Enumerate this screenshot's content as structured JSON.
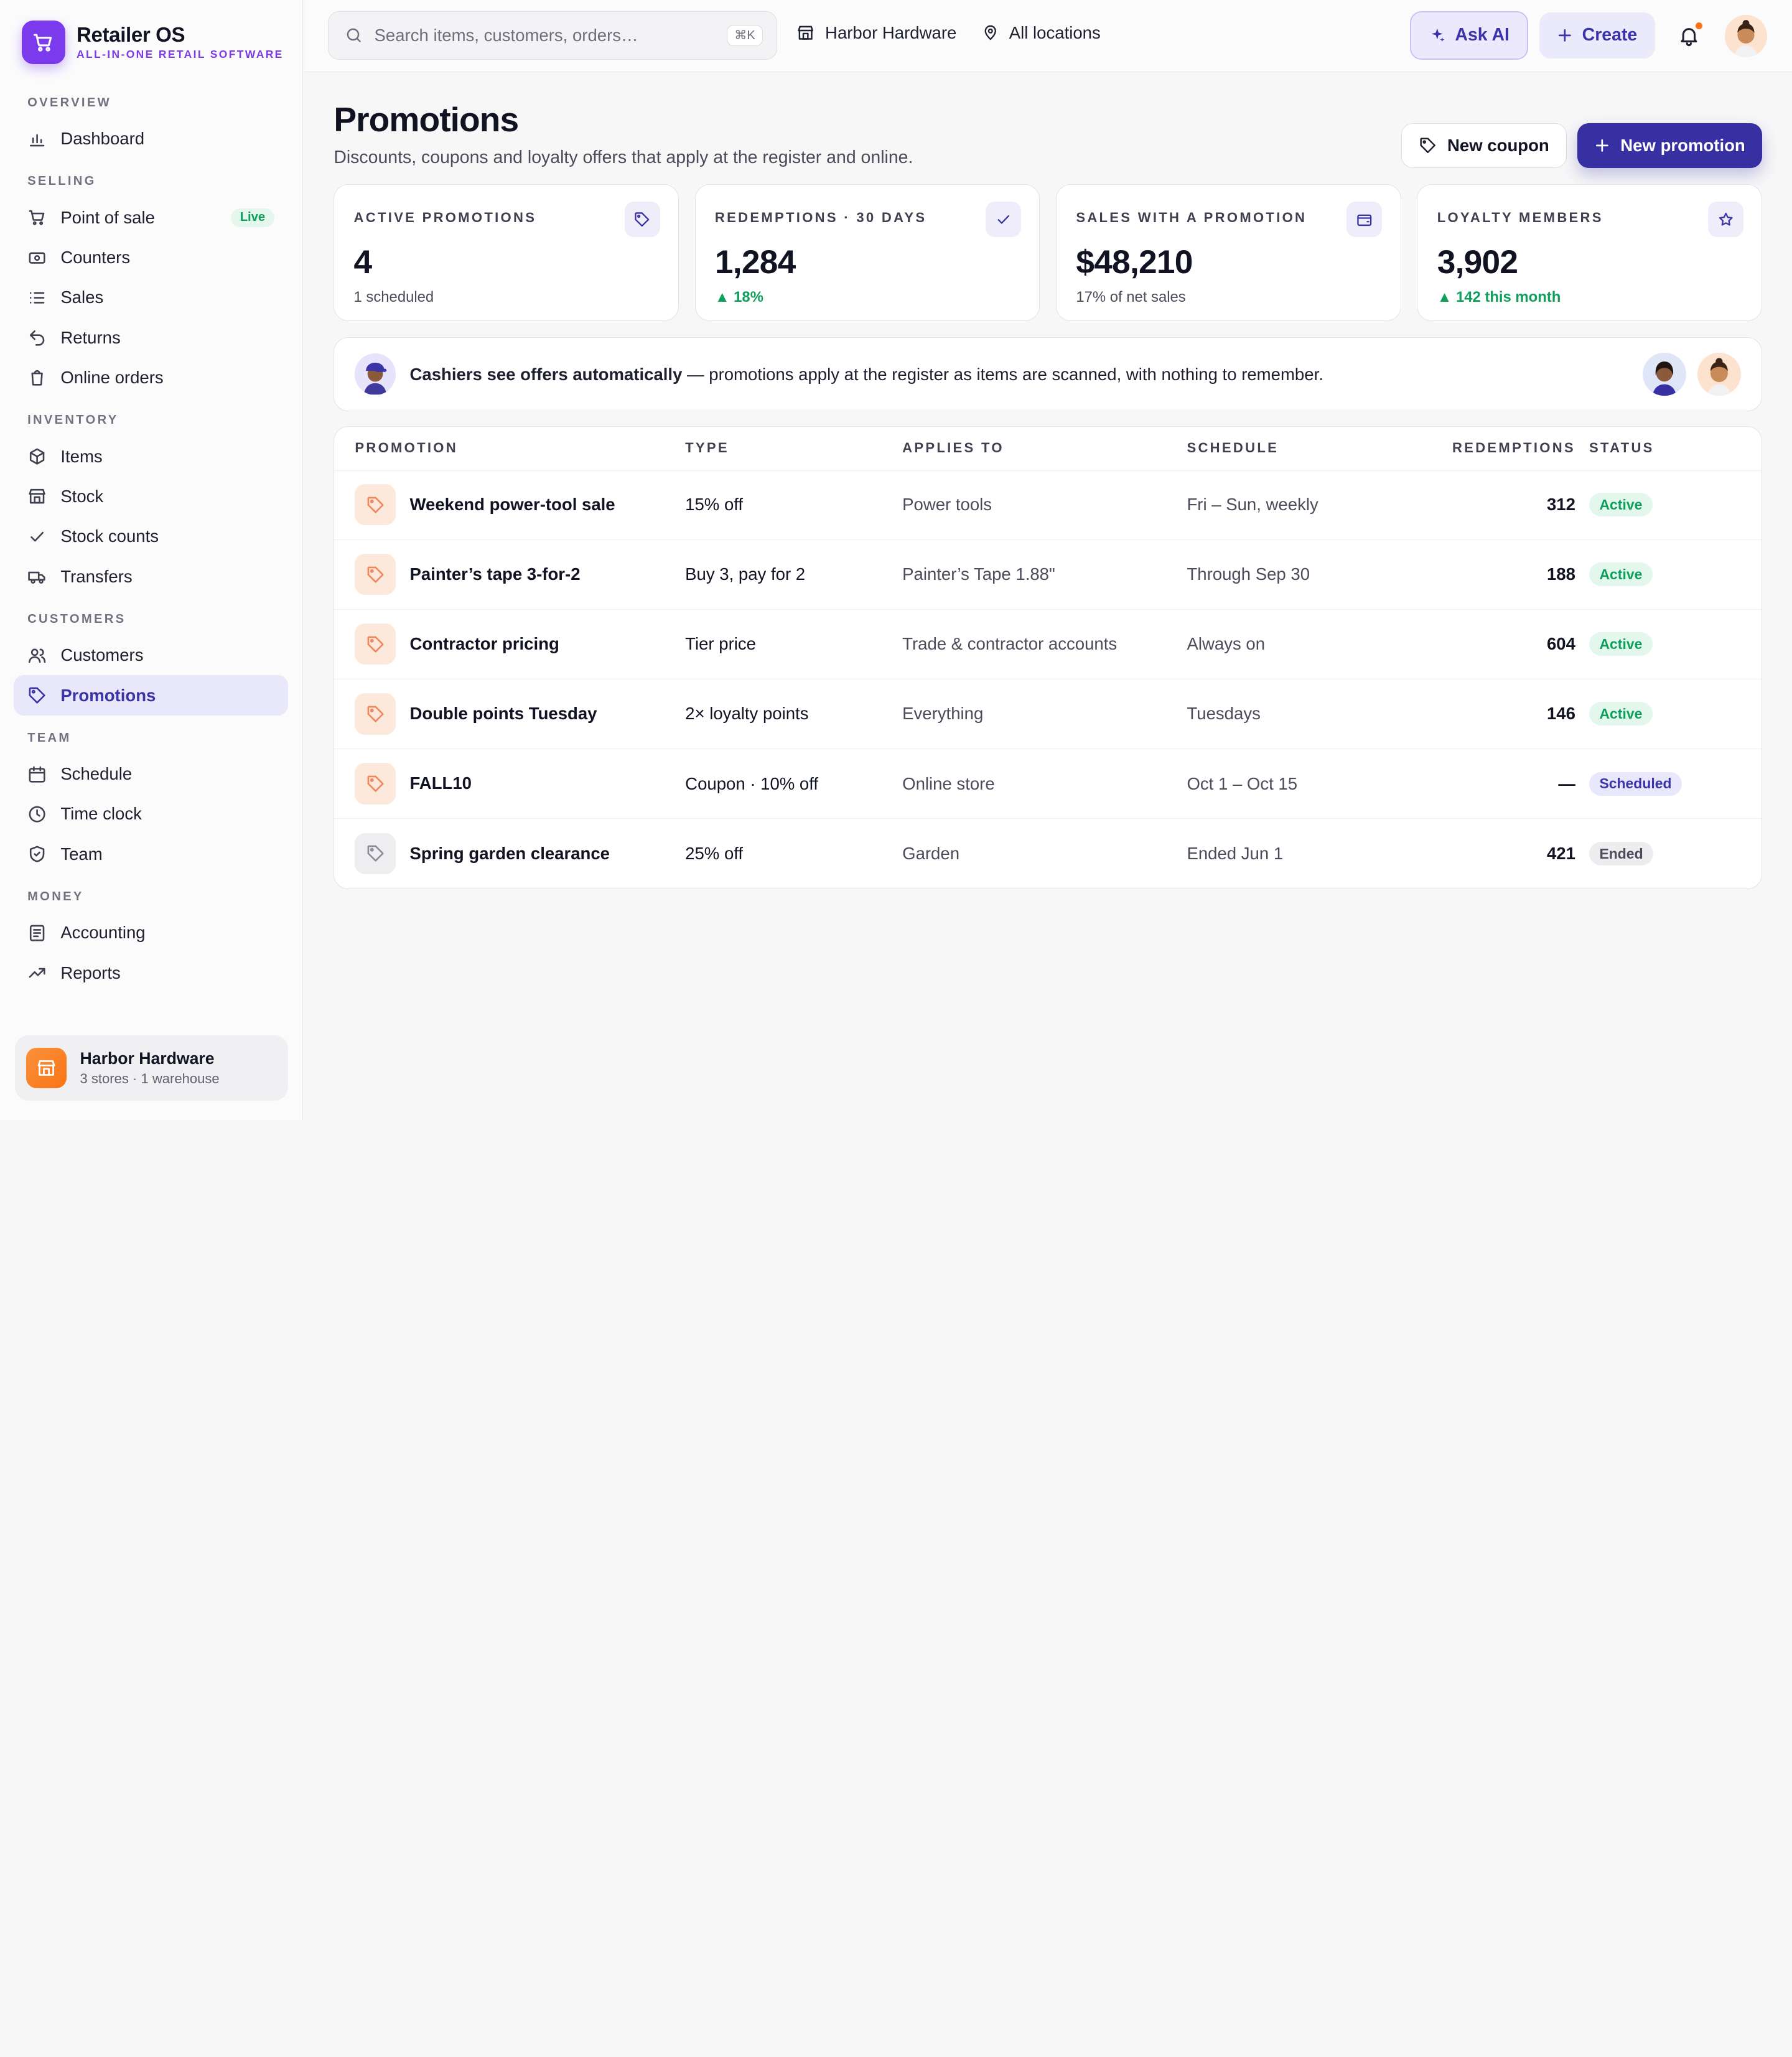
{
  "brand": {
    "name": "Retailer OS",
    "tagline": "ALL-IN-ONE RETAIL SOFTWARE"
  },
  "sidebar": {
    "sections": [
      {
        "title": "OVERVIEW",
        "items": [
          {
            "label": "Dashboard",
            "icon": "bar-chart-icon"
          }
        ]
      },
      {
        "title": "SELLING",
        "items": [
          {
            "label": "Point of sale",
            "icon": "cart-icon",
            "badge": "Live"
          },
          {
            "label": "Counters",
            "icon": "register-icon"
          },
          {
            "label": "Sales",
            "icon": "list-icon"
          },
          {
            "label": "Returns",
            "icon": "return-arrow-icon"
          },
          {
            "label": "Online orders",
            "icon": "bag-icon"
          }
        ]
      },
      {
        "title": "INVENTORY",
        "items": [
          {
            "label": "Items",
            "icon": "box-icon"
          },
          {
            "label": "Stock",
            "icon": "warehouse-icon"
          },
          {
            "label": "Stock counts",
            "icon": "check-icon"
          },
          {
            "label": "Transfers",
            "icon": "truck-icon"
          }
        ]
      },
      {
        "title": "CUSTOMERS",
        "items": [
          {
            "label": "Customers",
            "icon": "users-icon"
          },
          {
            "label": "Promotions",
            "icon": "tag-icon",
            "active": true
          }
        ]
      },
      {
        "title": "TEAM",
        "items": [
          {
            "label": "Schedule",
            "icon": "calendar-icon"
          },
          {
            "label": "Time clock",
            "icon": "clock-icon"
          },
          {
            "label": "Team",
            "icon": "shield-icon"
          }
        ]
      },
      {
        "title": "MONEY",
        "items": [
          {
            "label": "Accounting",
            "icon": "ledger-icon"
          },
          {
            "label": "Reports",
            "icon": "trend-icon"
          }
        ]
      }
    ],
    "store": {
      "name": "Harbor Hardware",
      "sub": "3 stores · 1 warehouse"
    }
  },
  "topbar": {
    "search_placeholder": "Search items, customers, orders…",
    "shortcut": "⌘K",
    "store": "Harbor Hardware",
    "location": "All locations",
    "ask_ai": "Ask AI",
    "create": "Create"
  },
  "page": {
    "title": "Promotions",
    "subtitle": "Discounts, coupons and loyalty offers that apply at the register and online.",
    "new_coupon": "New coupon",
    "new_promotion": "New promotion"
  },
  "stats": [
    {
      "label": "ACTIVE PROMOTIONS",
      "value": "4",
      "sub": "1 scheduled",
      "trend": false,
      "icon": "tag-icon"
    },
    {
      "label": "REDEMPTIONS · 30 DAYS",
      "value": "1,284",
      "sub": "▲ 18%",
      "trend": true,
      "icon": "check-icon"
    },
    {
      "label": "SALES WITH A PROMOTION",
      "value": "$48,210",
      "sub": "17% of net sales",
      "trend": false,
      "icon": "wallet-icon"
    },
    {
      "label": "LOYALTY MEMBERS",
      "value": "3,902",
      "sub": "▲ 142 this month",
      "trend": true,
      "icon": "star-icon"
    }
  ],
  "banner": {
    "bold": "Cashiers see offers automatically",
    "text": " — promotions apply at the register as items are scanned, with nothing to remember."
  },
  "table": {
    "headers": [
      "PROMOTION",
      "TYPE",
      "APPLIES TO",
      "SCHEDULE",
      "REDEMPTIONS",
      "STATUS"
    ],
    "rows": [
      {
        "name": "Weekend power-tool sale",
        "type": "15% off",
        "applies": "Power tools",
        "schedule": "Fri – Sun, weekly",
        "redemptions": "312",
        "status": "Active"
      },
      {
        "name": "Painter’s tape 3-for-2",
        "type": "Buy 3, pay for 2",
        "applies": "Painter’s Tape 1.88\"",
        "schedule": "Through Sep 30",
        "redemptions": "188",
        "status": "Active"
      },
      {
        "name": "Contractor pricing",
        "type": "Tier price",
        "applies": "Trade & contractor accounts",
        "schedule": "Always on",
        "redemptions": "604",
        "status": "Active"
      },
      {
        "name": "Double points Tuesday",
        "type": "2× loyalty points",
        "applies": "Everything",
        "schedule": "Tuesdays",
        "redemptions": "146",
        "status": "Active"
      },
      {
        "name": "FALL10",
        "type": "Coupon · 10% off",
        "applies": "Online store",
        "schedule": "Oct 1 – Oct 15",
        "redemptions": "—",
        "status": "Scheduled"
      },
      {
        "name": "Spring garden clearance",
        "type": "25% off",
        "applies": "Garden",
        "schedule": "Ended Jun 1",
        "redemptions": "421",
        "status": "Ended"
      }
    ]
  }
}
